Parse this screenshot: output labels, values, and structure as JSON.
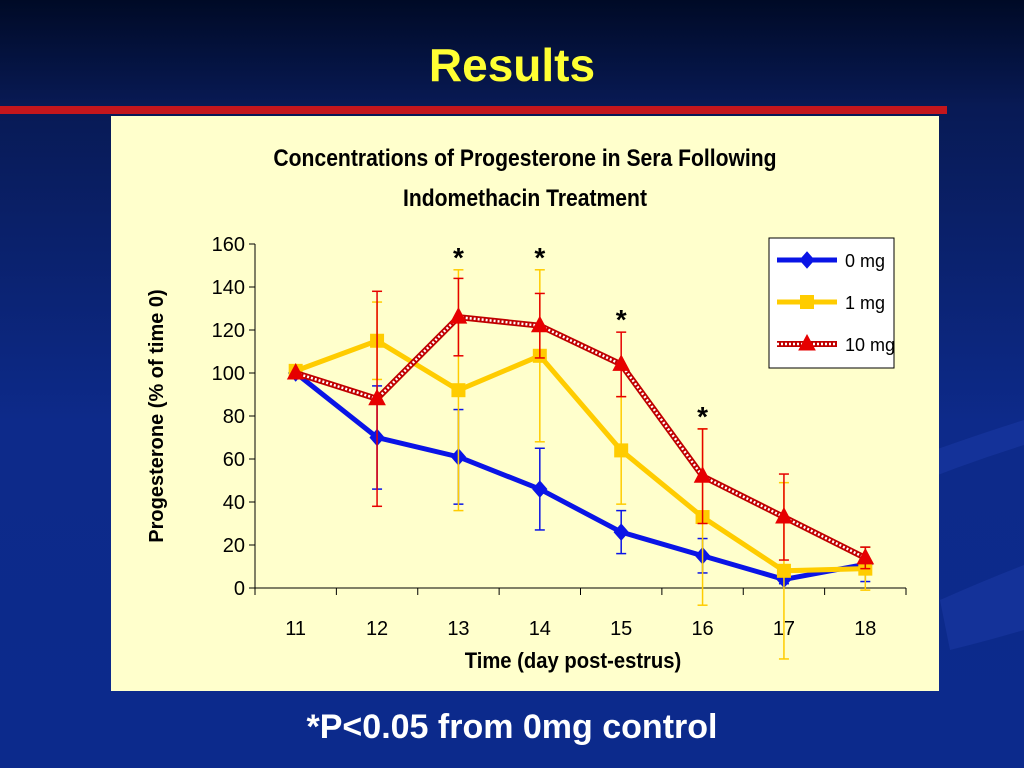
{
  "slide": {
    "title": "Results",
    "footnote": "*P<0.05 from 0mg control"
  },
  "colors": {
    "background": "#0c2a8c",
    "title": "#ffff33",
    "rule": "#c4161c",
    "panel": "#ffffcc"
  },
  "chart_data": {
    "type": "line",
    "title_lines": [
      "Concentrations of Progesterone in Sera Following",
      "Indomethacin Treatment"
    ],
    "xlabel": "Time (day post-estrus)",
    "ylabel": "Progesterone (%  of time 0)",
    "categories": [
      "11",
      "12",
      "13",
      "14",
      "15",
      "16",
      "17",
      "18"
    ],
    "ylim": [
      0,
      160
    ],
    "yticks": [
      0,
      20,
      40,
      60,
      80,
      100,
      120,
      140,
      160
    ],
    "legend_position": "top-right",
    "grid": false,
    "significance": [
      {
        "category": "13",
        "label": "*"
      },
      {
        "category": "14",
        "label": "*"
      },
      {
        "category": "15",
        "label": "*"
      },
      {
        "category": "16",
        "label": "*"
      }
    ],
    "series": [
      {
        "name": "0 mg",
        "color": "#0a14e6",
        "marker": "diamond",
        "values": [
          100,
          70,
          61,
          46,
          26,
          15,
          4,
          11
        ],
        "errors": [
          0,
          24,
          22,
          19,
          10,
          8,
          2,
          8
        ]
      },
      {
        "name": "1 mg",
        "color": "#ffcc00",
        "marker": "square",
        "values": [
          101,
          115,
          92,
          108,
          64,
          33,
          8,
          9
        ],
        "errors": [
          0,
          18,
          56,
          40,
          25,
          41,
          41,
          10
        ]
      },
      {
        "name": "10 mg",
        "color": "#e60000",
        "marker": "triangle",
        "values": [
          100,
          88,
          126,
          122,
          104,
          52,
          33,
          14
        ],
        "errors": [
          0,
          50,
          18,
          15,
          15,
          22,
          20,
          5
        ]
      }
    ]
  }
}
